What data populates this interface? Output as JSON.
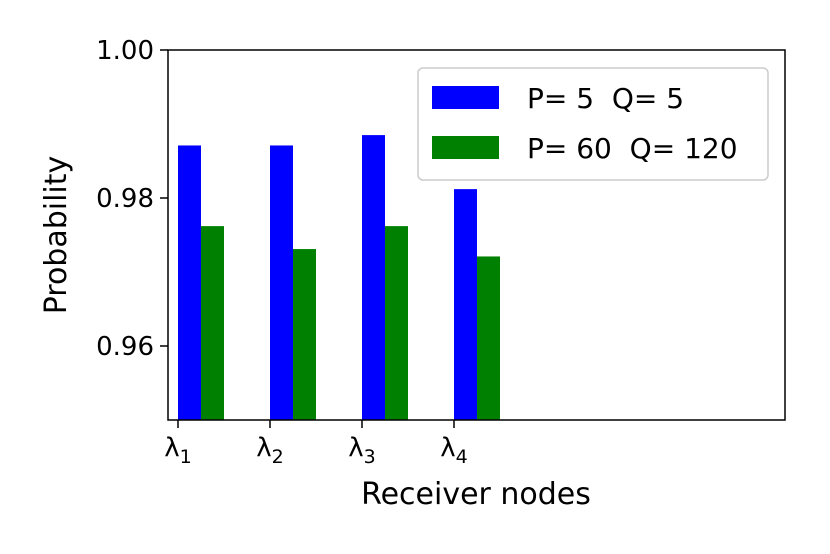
{
  "chart_data": {
    "type": "bar",
    "title": "",
    "xlabel": "Receiver nodes",
    "ylabel": "Probability",
    "categories": [
      {
        "base": "λ",
        "sub": "1"
      },
      {
        "base": "λ",
        "sub": "2"
      },
      {
        "base": "λ",
        "sub": "3"
      },
      {
        "base": "λ",
        "sub": "4"
      }
    ],
    "series": [
      {
        "name": "P= 5  Q= 5",
        "color": "#0000ff",
        "values": [
          0.9871,
          0.9871,
          0.9885,
          0.9812
        ]
      },
      {
        "name": "P= 60  Q= 120",
        "color": "#008000",
        "values": [
          0.9762,
          0.9731,
          0.9762,
          0.9721
        ]
      }
    ],
    "ylim": [
      0.95,
      1.0
    ],
    "yticks": [
      "0.96",
      "0.98",
      "1.00"
    ],
    "ytick_values": [
      0.96,
      0.98,
      1.0
    ],
    "grid": false,
    "legend_position": "top-right"
  }
}
